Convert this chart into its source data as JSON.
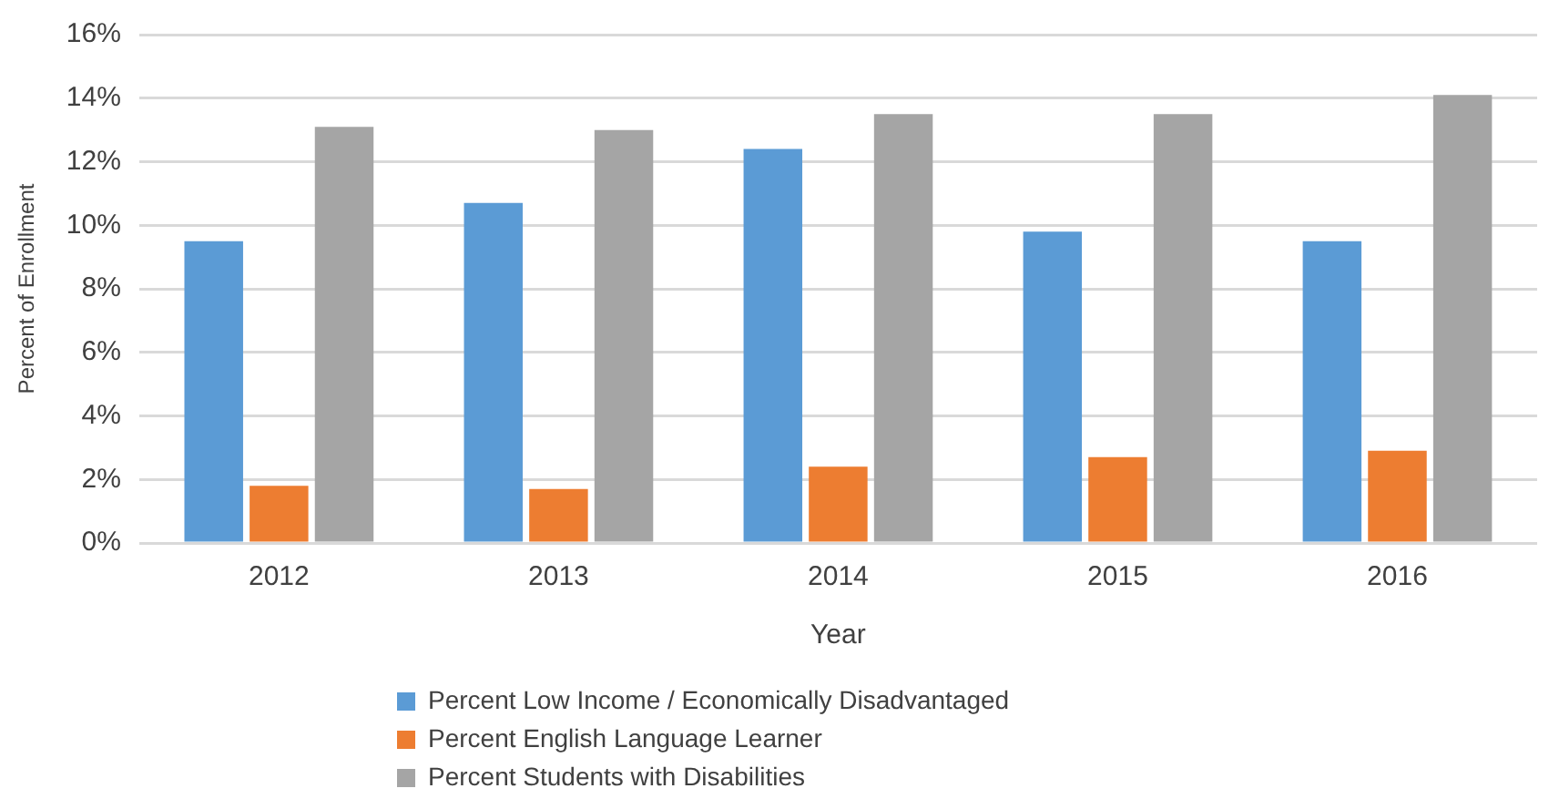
{
  "chart_data": {
    "type": "bar",
    "xlabel": "Year",
    "ylabel": "Percent of Enrollment",
    "categories": [
      "2012",
      "2013",
      "2014",
      "2015",
      "2016"
    ],
    "series": [
      {
        "name": "Percent Low Income / Economically Disadvantaged",
        "color": "#5b9bd5",
        "values": [
          9.5,
          10.7,
          12.4,
          9.8,
          9.5
        ]
      },
      {
        "name": "Percent English Language Learner",
        "color": "#ed7d31",
        "values": [
          1.8,
          1.7,
          2.4,
          2.7,
          2.9
        ]
      },
      {
        "name": "Percent Students with Disabilities",
        "color": "#a5a5a5",
        "values": [
          13.1,
          13.0,
          13.5,
          13.5,
          14.1
        ]
      }
    ],
    "ylim": [
      0,
      16
    ],
    "yticks": [
      {
        "value": 0,
        "label": "0%"
      },
      {
        "value": 2,
        "label": "2%"
      },
      {
        "value": 4,
        "label": "4%"
      },
      {
        "value": 6,
        "label": "6%"
      },
      {
        "value": 8,
        "label": "8%"
      },
      {
        "value": 10,
        "label": "10%"
      },
      {
        "value": 12,
        "label": "12%"
      },
      {
        "value": 14,
        "label": "14%"
      },
      {
        "value": 16,
        "label": "16%"
      }
    ],
    "grid": "y",
    "legend": "bottom"
  }
}
